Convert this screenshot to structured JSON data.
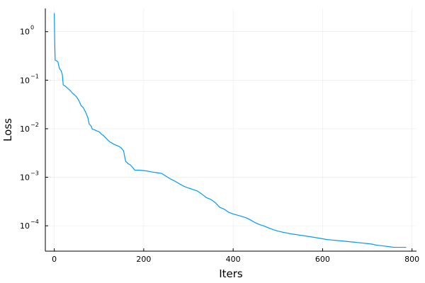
{
  "chart_data": {
    "type": "line",
    "xlabel": "Iters",
    "ylabel": "Loss",
    "xlim": [
      -20,
      810
    ],
    "ylim": [
      3e-05,
      3.0
    ],
    "yscale": "log",
    "grid": true,
    "legend": "none",
    "xticks": [
      0,
      200,
      400,
      600,
      800
    ],
    "yticks": [
      {
        "value": 1,
        "base": "10",
        "exp": "0"
      },
      {
        "value": 0.1,
        "base": "10",
        "exp": "−1"
      },
      {
        "value": 0.01,
        "base": "10",
        "exp": "−2"
      },
      {
        "value": 0.001,
        "base": "10",
        "exp": "−3"
      },
      {
        "value": 0.0001,
        "base": "10",
        "exp": "−4"
      }
    ],
    "series": [
      {
        "color": "#009AFA",
        "x": [
          0,
          1,
          2,
          5,
          8,
          10,
          12,
          15,
          18,
          20,
          25,
          30,
          35,
          40,
          45,
          50,
          55,
          60,
          65,
          70,
          75,
          78,
          80,
          82,
          85,
          90,
          95,
          100,
          105,
          110,
          115,
          120,
          125,
          130,
          135,
          140,
          145,
          150,
          155,
          158,
          160,
          163,
          165,
          170,
          175,
          180,
          190,
          200,
          210,
          220,
          230,
          240,
          250,
          260,
          270,
          280,
          290,
          300,
          310,
          320,
          330,
          340,
          350,
          360,
          370,
          380,
          390,
          400,
          410,
          420,
          430,
          440,
          450,
          460,
          470,
          480,
          490,
          500,
          510,
          520,
          530,
          540,
          550,
          560,
          570,
          580,
          590,
          600,
          610,
          620,
          630,
          640,
          650,
          660,
          670,
          680,
          690,
          700,
          710,
          720,
          730,
          740,
          750,
          760,
          770,
          780,
          787
        ],
        "y": [
          2.4,
          0.6,
          0.26,
          0.25,
          0.24,
          0.2,
          0.17,
          0.16,
          0.13,
          0.08,
          0.075,
          0.068,
          0.062,
          0.055,
          0.05,
          0.045,
          0.038,
          0.03,
          0.027,
          0.022,
          0.017,
          0.0125,
          0.012,
          0.0115,
          0.0098,
          0.0095,
          0.009,
          0.0087,
          0.0078,
          0.0072,
          0.0065,
          0.0058,
          0.0053,
          0.005,
          0.0047,
          0.0045,
          0.0043,
          0.004,
          0.0035,
          0.0025,
          0.0021,
          0.002,
          0.0019,
          0.0018,
          0.0016,
          0.0014,
          0.0014,
          0.00137,
          0.00133,
          0.00128,
          0.00124,
          0.0012,
          0.00105,
          0.00092,
          0.00083,
          0.00073,
          0.00065,
          0.0006,
          0.00056,
          0.00052,
          0.00045,
          0.00038,
          0.00035,
          0.0003,
          0.00024,
          0.00022,
          0.00019,
          0.000175,
          0.000165,
          0.000155,
          0.000145,
          0.00013,
          0.000115,
          0.000105,
          9.8e-05,
          9e-05,
          8.3e-05,
          7.8e-05,
          7.4e-05,
          7.1e-05,
          6.8e-05,
          6.6e-05,
          6.4e-05,
          6.2e-05,
          6e-05,
          5.8e-05,
          5.6e-05,
          5.4e-05,
          5.2e-05,
          5.1e-05,
          5e-05,
          4.9e-05,
          4.8e-05,
          4.7e-05,
          4.6e-05,
          4.5e-05,
          4.4e-05,
          4.3e-05,
          4.2e-05,
          4e-05,
          3.9e-05,
          3.8e-05,
          3.7e-05,
          3.6e-05,
          3.6e-05,
          3.6e-05,
          3.6e-05
        ]
      }
    ]
  }
}
